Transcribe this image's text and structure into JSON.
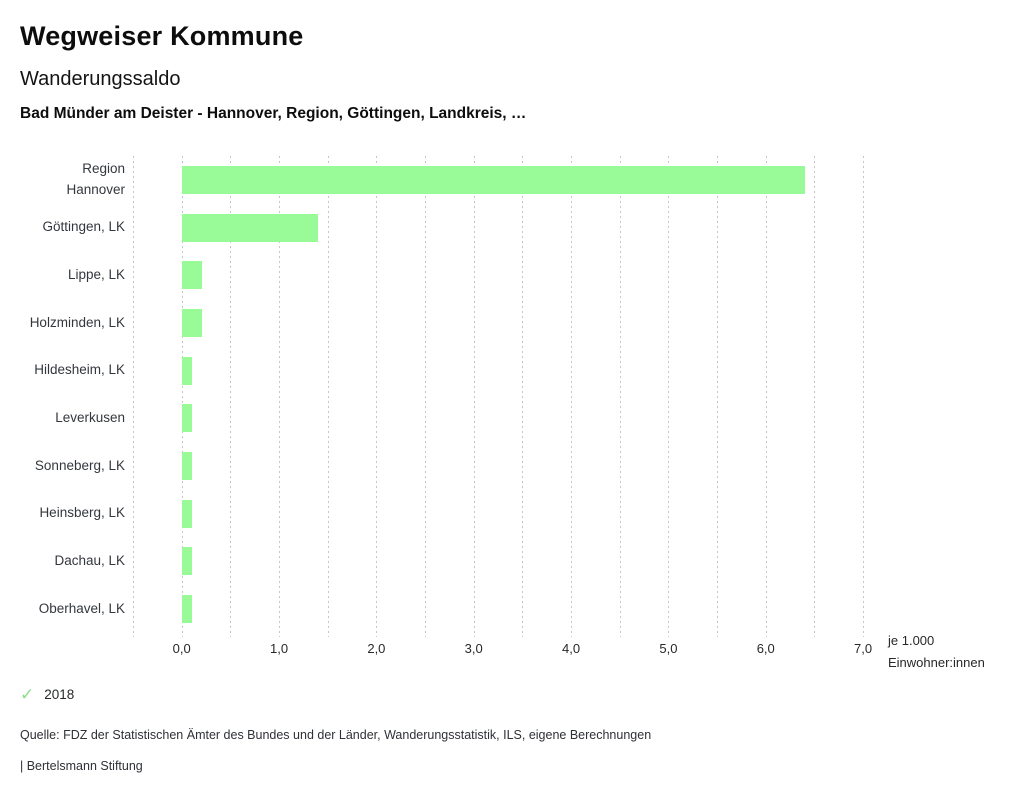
{
  "page": {
    "title": "Wegweiser Kommune",
    "subtitle": "Wanderungssaldo",
    "heading": "Bad Münder am Deister - Hannover, Region, Göttingen, Landkreis, …"
  },
  "chart_data": {
    "type": "bar",
    "orientation": "horizontal",
    "categories": [
      "Region\nHannover",
      "Göttingen, LK",
      "Lippe, LK",
      "Holzminden, LK",
      "Hildesheim, LK",
      "Leverkusen",
      "Sonneberg, LK",
      "Heinsberg, LK",
      "Dachau, LK",
      "Oberhavel, LK"
    ],
    "series": [
      {
        "name": "2018",
        "values": [
          6.4,
          1.4,
          0.2,
          0.2,
          0.1,
          0.1,
          0.1,
          0.1,
          0.1,
          0.1
        ]
      }
    ],
    "x_ticks": [
      "0,0",
      "1,0",
      "2,0",
      "3,0",
      "4,0",
      "5,0",
      "6,0",
      "7,0"
    ],
    "xlim": [
      -0.5,
      7.1
    ],
    "grid_step": 0.5,
    "grid": true,
    "xlabel": "je 1.000\nEinwohner:innen",
    "bar_color": "#98FB98",
    "gridline_color": "#c6c6c6",
    "legend": {
      "check_icon": "✓",
      "label": "2018",
      "check_color": "#8CE08C",
      "position": "bottom-left"
    }
  },
  "footer": {
    "source": "Quelle: FDZ der Statistischen Ämter des Bundes und der Länder, Wanderungsstatistik, ILS, eigene Berechnungen",
    "attribution": "| Bertelsmann Stiftung"
  }
}
